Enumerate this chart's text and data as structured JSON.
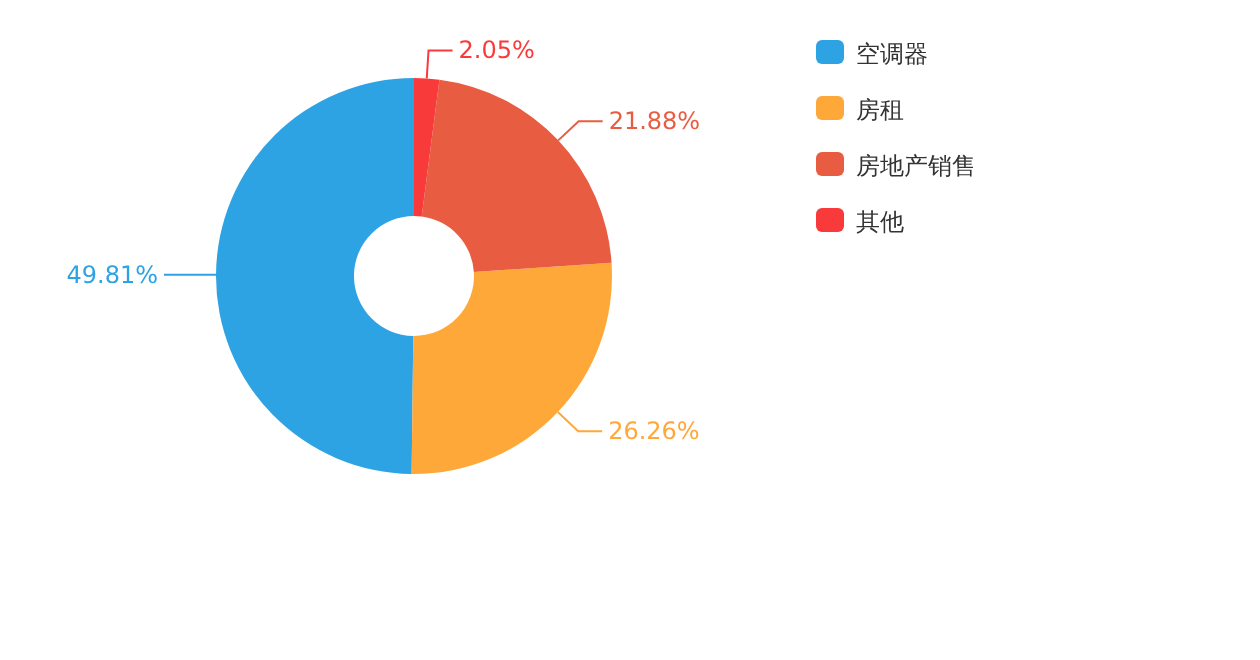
{
  "chart_data": {
    "type": "donut",
    "categories": [
      "空调器",
      "房租",
      "房地产销售",
      "其他"
    ],
    "values": [
      49.81,
      26.26,
      21.88,
      2.05
    ],
    "colors": [
      "#2ea3e3",
      "#ffa83a",
      "#e85d42",
      "#f93a3a"
    ],
    "value_labels": [
      "49.81%",
      "26.26%",
      "21.88%",
      "2.05%"
    ],
    "legend": "top right"
  }
}
